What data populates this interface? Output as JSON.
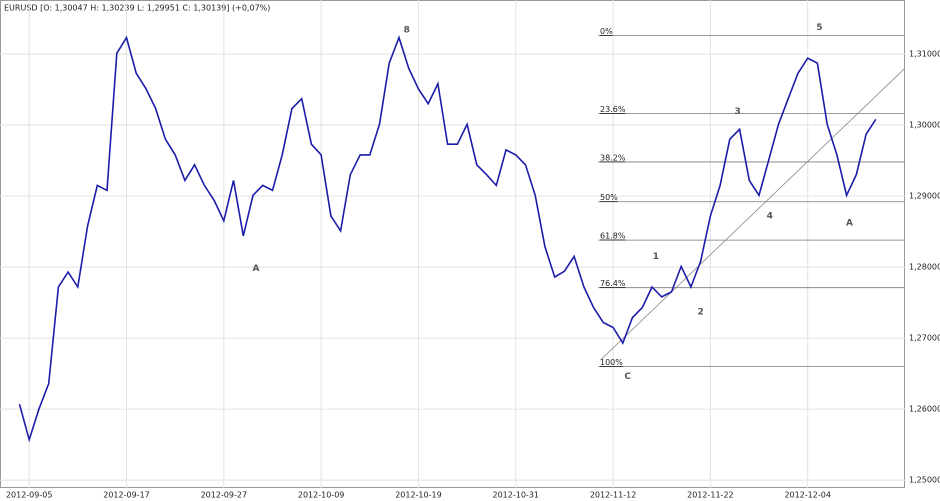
{
  "chart_data": {
    "type": "line",
    "title": "EURUSD [O: 1,30047  H: 1,30239  L: 1,29951  C: 1,30139]  (+0,07%)",
    "color": "#1c1caa",
    "grid": true,
    "x": [
      2,
      3,
      4,
      5,
      6,
      7,
      8,
      9,
      10,
      11,
      12,
      13,
      14,
      15,
      16,
      17,
      18,
      19,
      20,
      21,
      22,
      23,
      24,
      25,
      26,
      27,
      28,
      29,
      30,
      31,
      32,
      33,
      34,
      35,
      36,
      37,
      38,
      39,
      40,
      41,
      42,
      43,
      44,
      45,
      46,
      47,
      48,
      49,
      50,
      51,
      52,
      53,
      54,
      55,
      56,
      57,
      58,
      59,
      60,
      61,
      62,
      63,
      64,
      65,
      66,
      67,
      68,
      69,
      70,
      71,
      72,
      73,
      74,
      75,
      76,
      77,
      78,
      79,
      80,
      81,
      82,
      83,
      84,
      85,
      86,
      87,
      88,
      89,
      90
    ],
    "values": [
      1.2607,
      1.2557,
      1.26,
      1.2636,
      1.2772,
      1.2793,
      1.2772,
      1.2858,
      1.2915,
      1.2908,
      1.3101,
      1.3123,
      1.3073,
      1.3051,
      1.3023,
      1.298,
      1.2958,
      1.2922,
      1.2944,
      1.2915,
      1.2894,
      1.2865,
      1.2922,
      1.2844,
      1.2901,
      1.2915,
      1.2908,
      1.2958,
      1.3023,
      1.3037,
      1.2973,
      1.2958,
      1.2872,
      1.2851,
      1.293,
      1.2958,
      1.2958,
      1.3001,
      1.3087,
      1.3123,
      1.308,
      1.3051,
      1.303,
      1.3058,
      1.2973,
      1.2973,
      1.3001,
      1.2944,
      1.293,
      1.2915,
      1.2965,
      1.2958,
      1.2944,
      1.2901,
      1.2829,
      1.2786,
      1.2794,
      1.2815,
      1.2772,
      1.2743,
      1.2722,
      1.2715,
      1.2693,
      1.2729,
      1.2743,
      1.2772,
      1.2758,
      1.2765,
      1.2801,
      1.2772,
      1.2808,
      1.2872,
      1.2915,
      1.298,
      1.2994,
      1.2922,
      1.2901,
      1.2951,
      1.3001,
      1.3037,
      1.3073,
      1.3094,
      1.3087,
      1.3001,
      1.2958,
      1.2901,
      1.293,
      1.2987,
      1.3008
    ],
    "xlim": [
      0,
      93
    ],
    "ylim": [
      1.2489,
      1.3176
    ],
    "xticks": [
      {
        "value": 3,
        "label": "2012-09-05"
      },
      {
        "value": 13,
        "label": "2012-09-17"
      },
      {
        "value": 23,
        "label": "2012-09-27"
      },
      {
        "value": 33,
        "label": "2012-10-09"
      },
      {
        "value": 43,
        "label": "2012-10-19"
      },
      {
        "value": 53,
        "label": "2012-10-31"
      },
      {
        "value": 63,
        "label": "2012-11-12"
      },
      {
        "value": 73,
        "label": "2012-11-22"
      },
      {
        "value": 83,
        "label": "2012-12-04"
      }
    ],
    "yticks": [
      {
        "value": 1.25,
        "label": "1,25000"
      },
      {
        "value": 1.26,
        "label": "1,26000"
      },
      {
        "value": 1.27,
        "label": "1,27000"
      },
      {
        "value": 1.28,
        "label": "1,28000"
      },
      {
        "value": 1.29,
        "label": "1,29000"
      },
      {
        "value": 1.3,
        "label": "1,30000"
      },
      {
        "value": 1.31,
        "label": "1,31000"
      }
    ],
    "fib_levels": [
      {
        "value": 1.3126,
        "label": "0%"
      },
      {
        "value": 1.3016,
        "label": "23.6%"
      },
      {
        "value": 1.2948,
        "label": "38.2%"
      },
      {
        "value": 1.2892,
        "label": "50%"
      },
      {
        "value": 1.2838,
        "label": "61.8%"
      },
      {
        "value": 1.2771,
        "label": "76.4%"
      },
      {
        "value": 1.266,
        "label": "100%"
      }
    ],
    "trendline": {
      "x": [
        61.7,
        93
      ],
      "y": [
        1.2669,
        1.308
      ]
    },
    "annotations": [
      {
        "text": "8",
        "x": 41.8,
        "y": 1.3134
      },
      {
        "text": "A",
        "x": 26.3,
        "y": 1.2798
      },
      {
        "text": "1",
        "x": 67.4,
        "y": 1.2815
      },
      {
        "text": "2",
        "x": 72,
        "y": 1.2737
      },
      {
        "text": "3",
        "x": 75.8,
        "y": 1.3019
      },
      {
        "text": "4",
        "x": 79.1,
        "y": 1.2872
      },
      {
        "text": "5",
        "x": 84.2,
        "y": 1.3137
      },
      {
        "text": "A",
        "x": 87.3,
        "y": 1.2862
      },
      {
        "text": "C",
        "x": 64.5,
        "y": 1.2646
      }
    ]
  }
}
